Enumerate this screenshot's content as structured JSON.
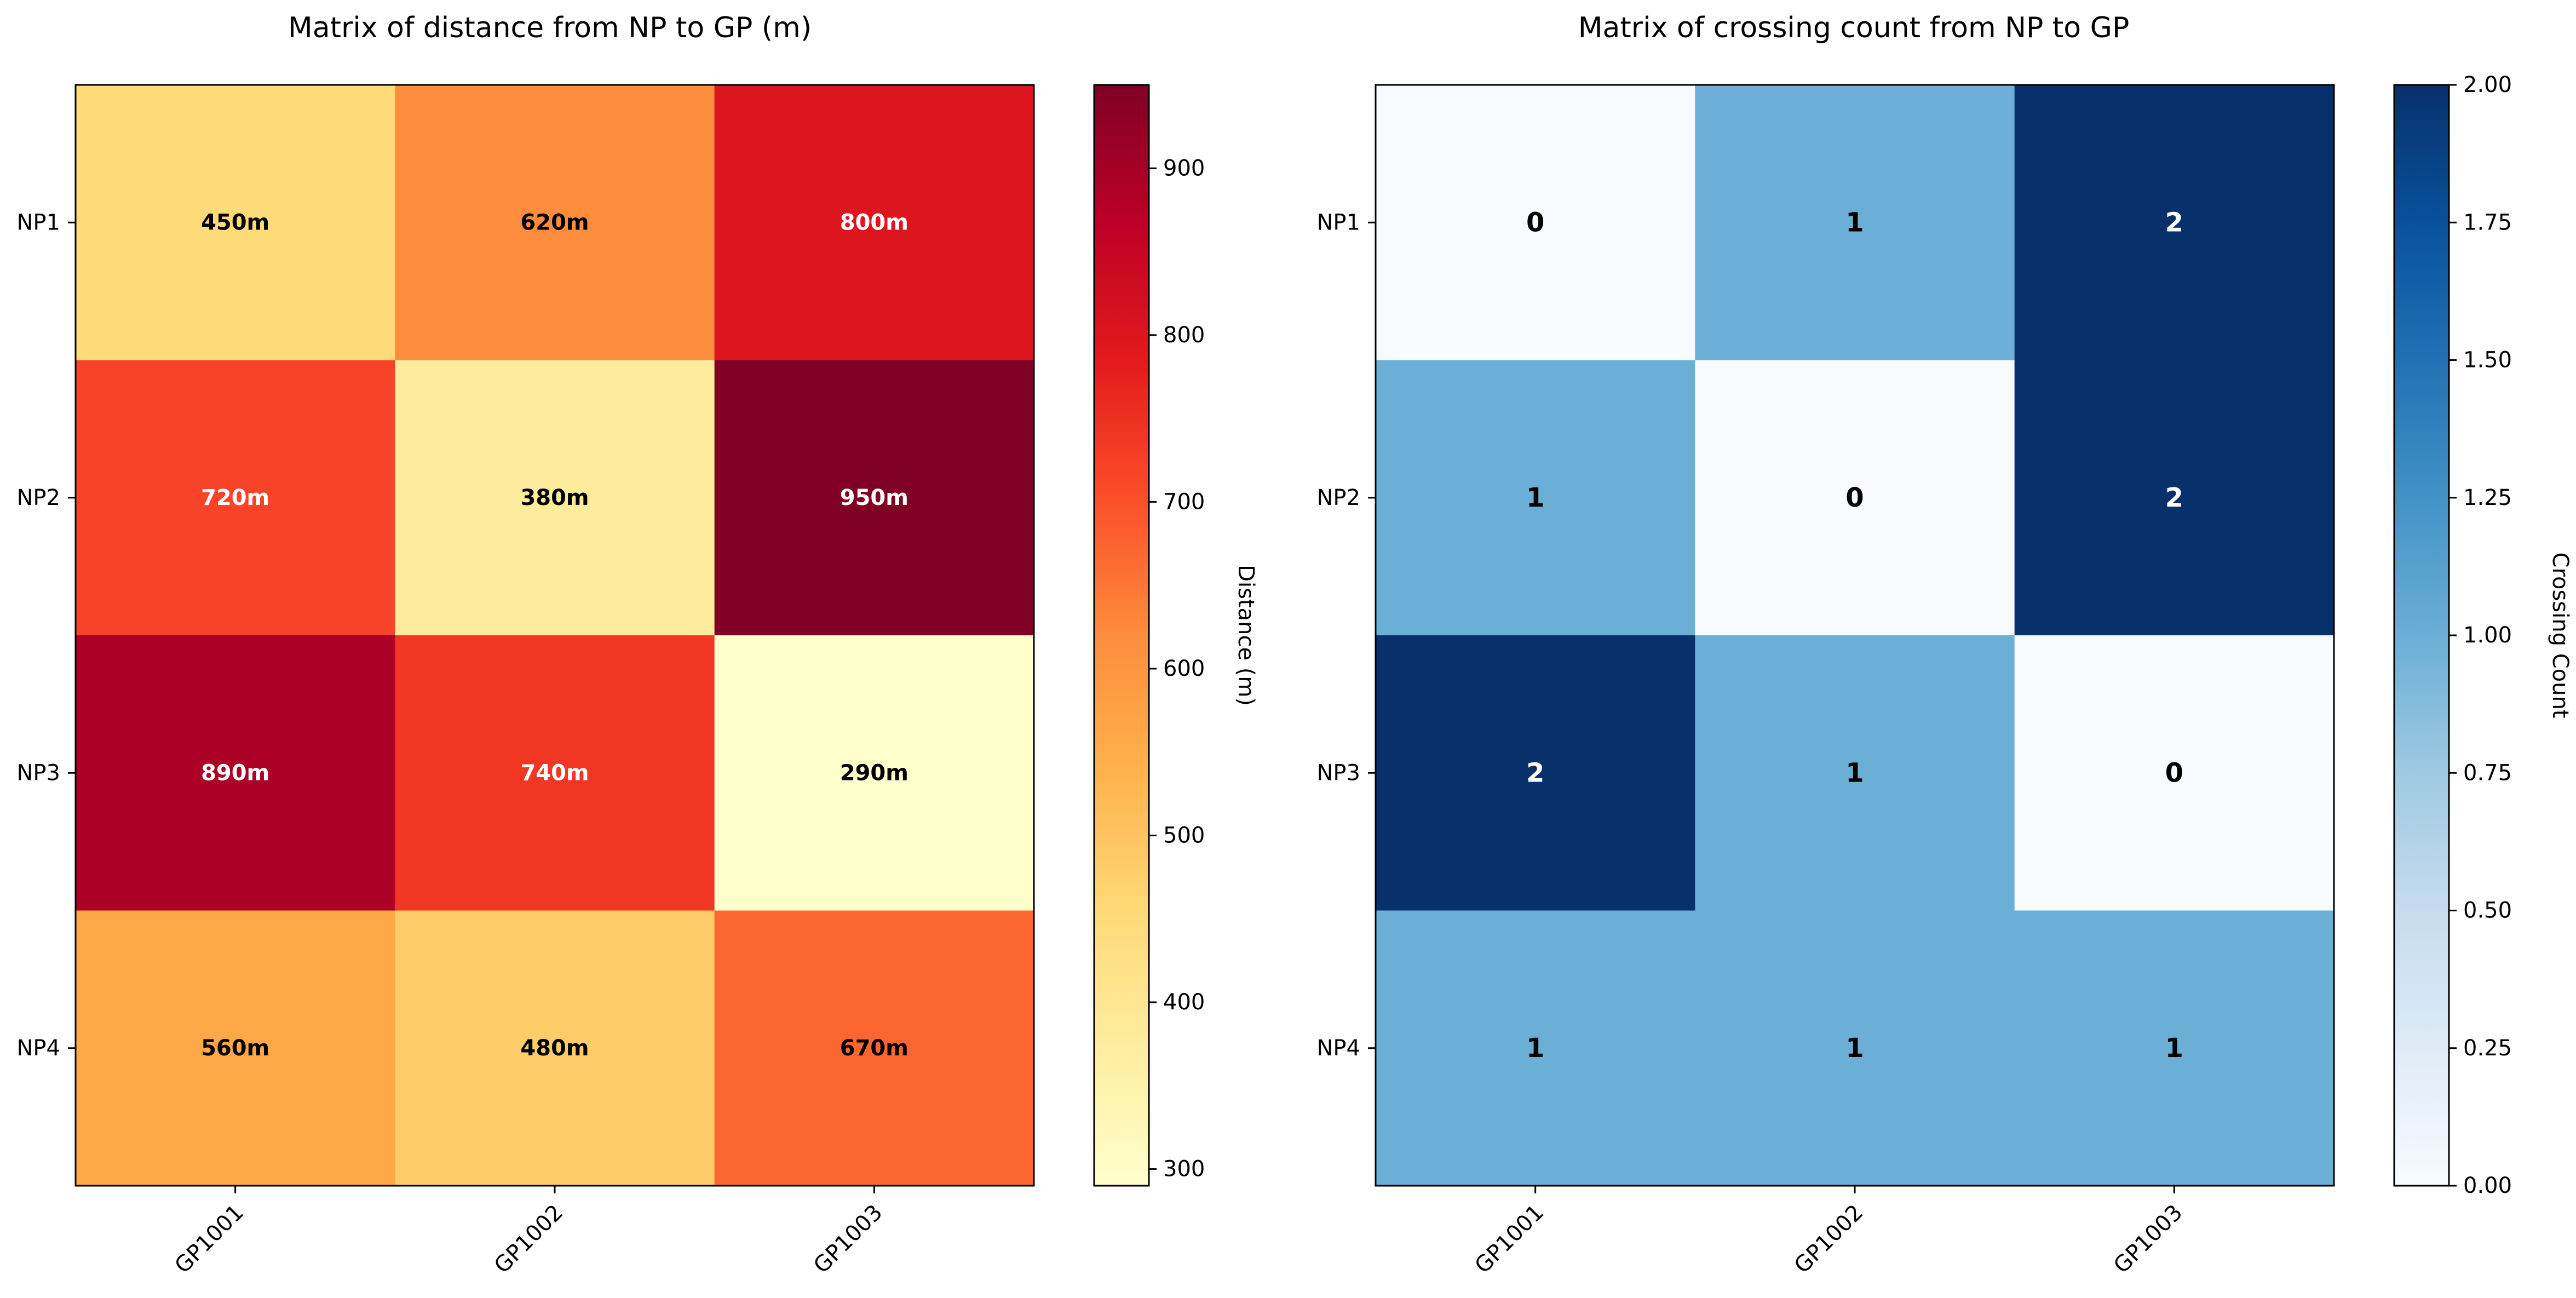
{
  "chart_data": [
    {
      "type": "heatmap",
      "title": "Matrix of distance from NP to GP (m)",
      "rows": [
        "NP1",
        "NP2",
        "NP3",
        "NP4"
      ],
      "columns": [
        "GP1001",
        "GP1002",
        "GP1003"
      ],
      "values": [
        [
          450,
          620,
          800
        ],
        [
          720,
          380,
          950
        ],
        [
          890,
          740,
          290
        ],
        [
          560,
          480,
          670
        ]
      ],
      "cell_labels": [
        [
          "450m",
          "620m",
          "800m"
        ],
        [
          "720m",
          "380m",
          "950m"
        ],
        [
          "890m",
          "740m",
          "290m"
        ],
        [
          "560m",
          "480m",
          "670m"
        ]
      ],
      "colormap": "YlOrRd",
      "colorbar": {
        "label": "Distance (m)",
        "range": [
          290,
          950
        ],
        "ticks": [
          300,
          400,
          500,
          600,
          700,
          800,
          900
        ],
        "tick_labels": [
          "300",
          "400",
          "500",
          "600",
          "700",
          "800",
          "900"
        ]
      }
    },
    {
      "type": "heatmap",
      "title": "Matrix of crossing count from NP to GP",
      "rows": [
        "NP1",
        "NP2",
        "NP3",
        "NP4"
      ],
      "columns": [
        "GP1001",
        "GP1002",
        "GP1003"
      ],
      "values": [
        [
          0,
          1,
          2
        ],
        [
          1,
          0,
          2
        ],
        [
          2,
          1,
          0
        ],
        [
          1,
          1,
          1
        ]
      ],
      "cell_labels": [
        [
          "0",
          "1",
          "2"
        ],
        [
          "1",
          "0",
          "2"
        ],
        [
          "2",
          "1",
          "0"
        ],
        [
          "1",
          "1",
          "1"
        ]
      ],
      "colormap": "Blues",
      "colorbar": {
        "label": "Crossing Count",
        "range": [
          0,
          2
        ],
        "ticks": [
          0,
          0.25,
          0.5,
          0.75,
          1,
          1.25,
          1.5,
          1.75,
          2
        ],
        "tick_labels": [
          "0.00",
          "0.25",
          "0.50",
          "0.75",
          "1.00",
          "1.25",
          "1.50",
          "1.75",
          "2.00"
        ]
      }
    }
  ]
}
